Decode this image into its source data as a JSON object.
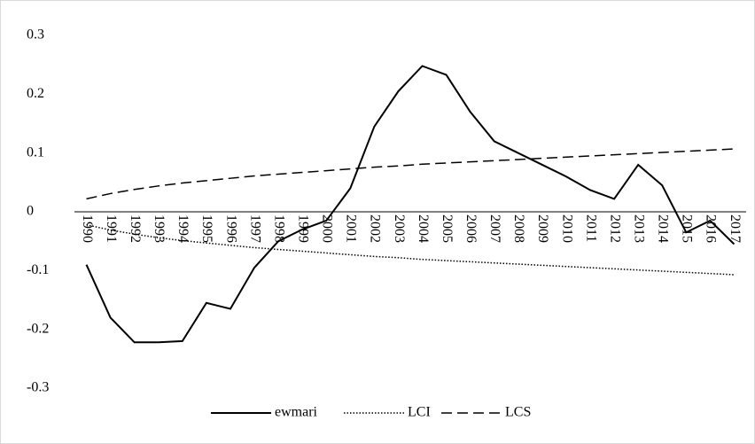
{
  "chart_data": {
    "type": "line",
    "categories": [
      "1990",
      "1991",
      "1992",
      "1993",
      "1994",
      "1995",
      "1996",
      "1997",
      "1998",
      "1999",
      "2000",
      "2001",
      "2002",
      "2003",
      "2004",
      "2005",
      "2006",
      "2007",
      "2008",
      "2009",
      "2010",
      "2011",
      "2012",
      "2013",
      "2014",
      "2015",
      "2016",
      "2017"
    ],
    "series": [
      {
        "name": "ewmari",
        "color": "#000000",
        "style": "solid",
        "values": [
          -0.09,
          -0.18,
          -0.222,
          -0.222,
          -0.22,
          -0.155,
          -0.165,
          -0.095,
          -0.05,
          -0.03,
          -0.015,
          0.04,
          0.145,
          0.205,
          0.248,
          0.233,
          0.17,
          0.12,
          0.1,
          0.08,
          0.06,
          0.037,
          0.022,
          0.08,
          0.045,
          -0.035,
          -0.015,
          -0.055
        ]
      },
      {
        "name": "LCI",
        "color": "#000000",
        "style": "dotted",
        "values": [
          -0.022,
          -0.031,
          -0.038,
          -0.044,
          -0.049,
          -0.053,
          -0.057,
          -0.061,
          -0.064,
          -0.067,
          -0.07,
          -0.073,
          -0.076,
          -0.078,
          -0.081,
          -0.083,
          -0.085,
          -0.087,
          -0.089,
          -0.091,
          -0.093,
          -0.095,
          -0.097,
          -0.099,
          -0.101,
          -0.103,
          -0.105,
          -0.107
        ]
      },
      {
        "name": "LCS",
        "color": "#000000",
        "style": "dashed",
        "values": [
          0.022,
          0.031,
          0.038,
          0.044,
          0.049,
          0.053,
          0.057,
          0.061,
          0.064,
          0.067,
          0.07,
          0.073,
          0.076,
          0.078,
          0.081,
          0.083,
          0.085,
          0.087,
          0.089,
          0.091,
          0.093,
          0.095,
          0.097,
          0.099,
          0.101,
          0.103,
          0.105,
          0.107
        ]
      }
    ],
    "ylim": [
      -0.3,
      0.3
    ],
    "yticks": [
      0.3,
      0.2,
      0.1,
      0,
      -0.1,
      -0.2,
      -0.3
    ],
    "grid": false,
    "legend": "bottom"
  }
}
